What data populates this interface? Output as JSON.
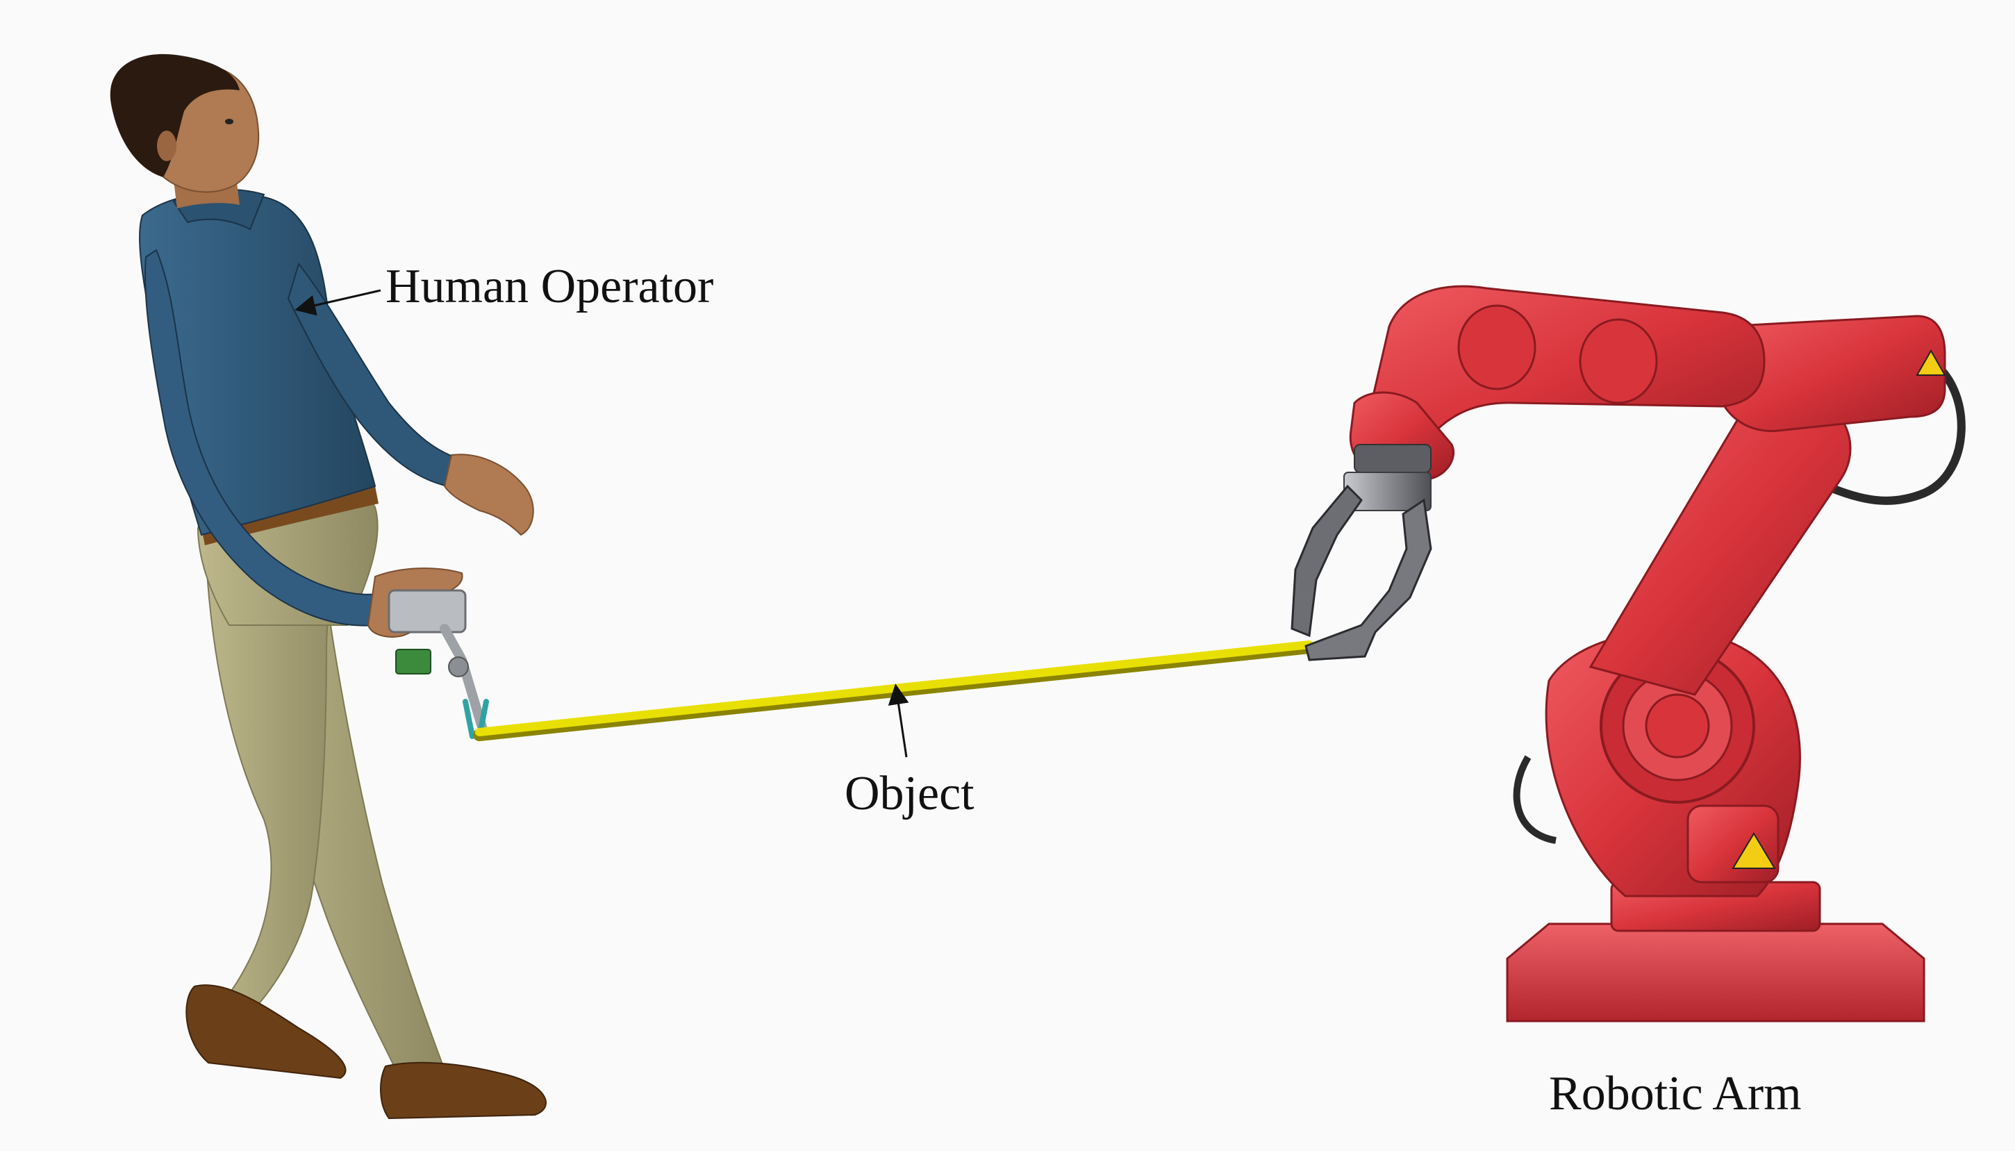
{
  "labels": {
    "human_operator": "Human Operator",
    "object": "Object",
    "robotic_arm": "Robotic Arm"
  },
  "colors": {
    "background": "#fafafa",
    "shirt": "#2e5575",
    "pants": "#a8a277",
    "skin": "#b07a52",
    "hair": "#2a1a10",
    "shoes": "#6b3f18",
    "object_rod": "#e8e000",
    "robot_red": "#d8343c",
    "robot_dark_red": "#a8232a",
    "gripper_metal": "#7d7f84",
    "cable": "#2a2a2a",
    "text": "#111111"
  },
  "icons": {
    "warning_sign": "warning-icon"
  }
}
